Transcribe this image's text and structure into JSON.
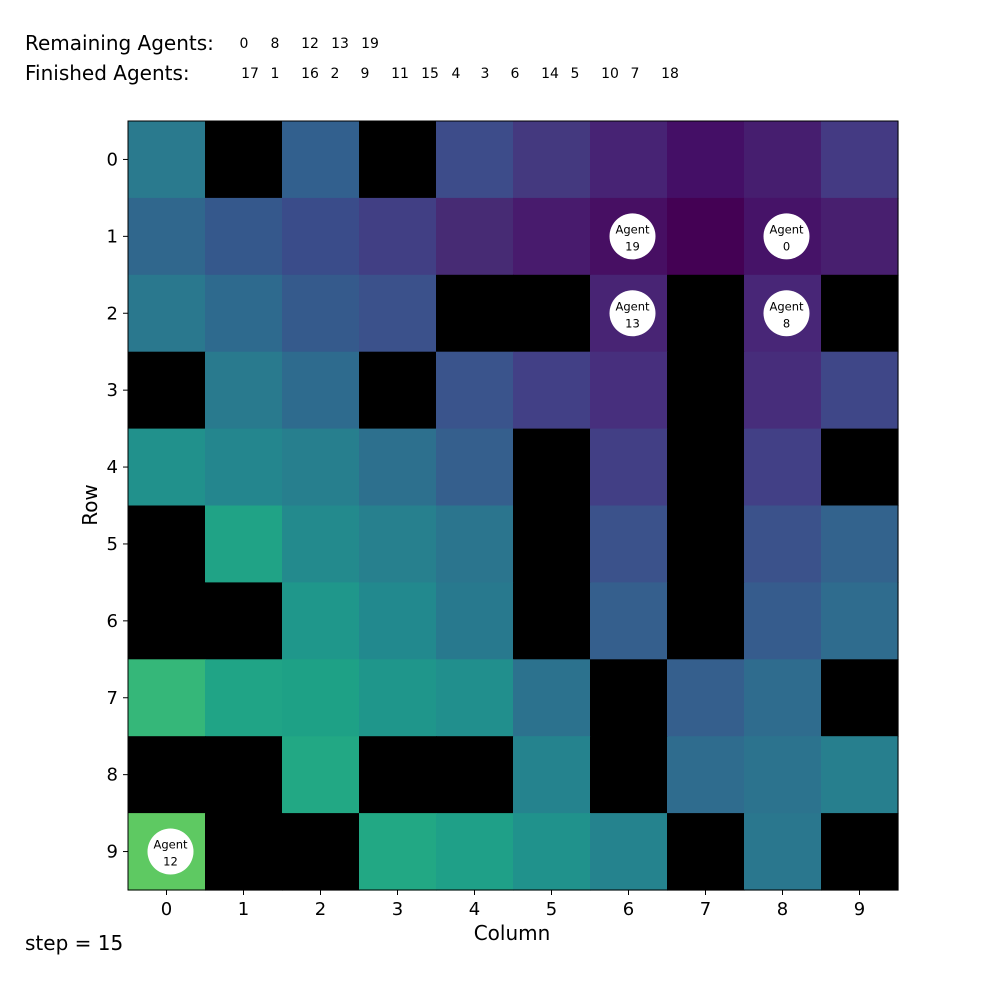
{
  "header": {
    "remaining_label": "Remaining Agents:",
    "remaining": [
      "0",
      "8",
      "12",
      "13",
      "19"
    ],
    "finished_label": "Finished Agents:",
    "finished": [
      "17",
      "1",
      "16",
      "2",
      "9",
      "11",
      "15",
      "4",
      "3",
      "6",
      "14",
      "5",
      "10",
      "7",
      "18"
    ]
  },
  "step_text": "step = 15",
  "chart_data": {
    "type": "heatmap",
    "title": "",
    "xlabel": "Column",
    "ylabel": "Row",
    "x_ticks": [
      "0",
      "1",
      "2",
      "3",
      "4",
      "5",
      "6",
      "7",
      "8",
      "9"
    ],
    "y_ticks": [
      "0",
      "1",
      "2",
      "3",
      "4",
      "5",
      "6",
      "7",
      "8",
      "9"
    ],
    "obstacle_color": "#000000",
    "agent_fill": "#ffffff",
    "cells": [
      [
        "#2a7a8e",
        null,
        "#32608e",
        null,
        "#3d4c8a",
        "#44397f",
        "#472374",
        "#440f66",
        "#461e6f",
        "#443a83"
      ],
      [
        "#30678d",
        "#35588c",
        "#3a4c8a",
        "#413f84",
        "#472b74",
        "#481b6d",
        "#470f63",
        "#440154",
        "#461368",
        "#481f6f"
      ],
      [
        "#2a788e",
        "#2e6a8e",
        "#355a8c",
        "#3b518b",
        null,
        null,
        "#482474",
        null,
        "#482677",
        null
      ],
      [
        null,
        "#297a8e",
        "#2e6b8e",
        null,
        "#3a548c",
        "#424086",
        "#472f7d",
        null,
        "#472d7b",
        "#3f4788"
      ],
      [
        "#21918c",
        "#24868e",
        "#277f8e",
        "#2d708e",
        "#355f8d",
        null,
        "#423f85",
        null,
        "#424086",
        null
      ],
      [
        null,
        "#20a386",
        "#238a8d",
        "#27808e",
        "#2b758e",
        null,
        "#3b528b",
        null,
        "#3b528b",
        "#33638d"
      ],
      [
        null,
        null,
        "#1f978b",
        "#22898e",
        "#28798e",
        null,
        "#355f8d",
        null,
        "#365c8d",
        "#2f6c8e"
      ],
      [
        "#35b779",
        "#20a486",
        "#1ea186",
        "#1f968b",
        "#218f8d",
        "#2c728e",
        null,
        "#355f8d",
        "#2f6c8e",
        null
      ],
      [
        null,
        null,
        "#22a884",
        null,
        null,
        "#25838e",
        null,
        "#2f6c8e",
        "#2c738e",
        "#277f8e"
      ],
      [
        "#5ec962",
        null,
        null,
        "#22a884",
        "#1fa088",
        "#20928c",
        "#25838e",
        null,
        "#2a778e",
        null
      ]
    ],
    "agents": [
      {
        "label": "Agent",
        "id": "19",
        "row": 1,
        "col": 6
      },
      {
        "label": "Agent",
        "id": "0",
        "row": 1,
        "col": 8
      },
      {
        "label": "Agent",
        "id": "13",
        "row": 2,
        "col": 6
      },
      {
        "label": "Agent",
        "id": "8",
        "row": 2,
        "col": 8
      },
      {
        "label": "Agent",
        "id": "12",
        "row": 9,
        "col": 0
      }
    ]
  }
}
